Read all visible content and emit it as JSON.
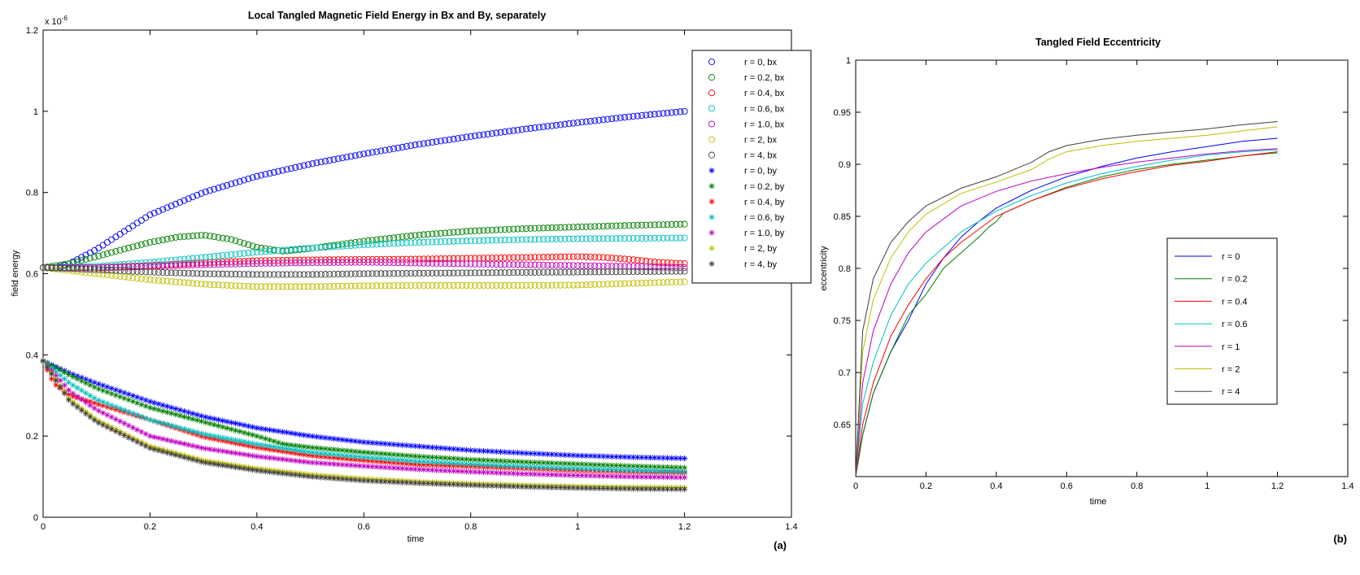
{
  "chart_data": [
    {
      "type": "scatter",
      "panel_label": "(a)",
      "title": "Local Tangled Magnetic Field Energy in Bx and By, separately",
      "xlabel": "time",
      "ylabel": "field energy",
      "y_multiplier": "x 10",
      "y_multiplier_exp": "-6",
      "xlim": [
        0,
        1.4
      ],
      "ylim": [
        0,
        1.2
      ],
      "xticks": [
        "0",
        "0.2",
        "0.4",
        "0.6",
        "0.8",
        "1",
        "1.2",
        "1.4"
      ],
      "yticks": [
        "0",
        "0.2",
        "0.4",
        "0.6",
        "0.8",
        "1",
        "1.2"
      ],
      "legend_position": "top-right",
      "series": [
        {
          "name": "r = 0, bx",
          "marker": "circle",
          "color": "#0000ff",
          "x": [
            0,
            0.02,
            0.05,
            0.1,
            0.2,
            0.3,
            0.4,
            0.5,
            0.6,
            0.7,
            0.8,
            0.9,
            1.0,
            1.1,
            1.2
          ],
          "y": [
            0.615,
            0.613,
            0.625,
            0.66,
            0.745,
            0.8,
            0.84,
            0.87,
            0.895,
            0.918,
            0.938,
            0.956,
            0.972,
            0.987,
            1.0
          ]
        },
        {
          "name": "r = 0.2, bx",
          "marker": "circle",
          "color": "#008000",
          "x": [
            0,
            0.05,
            0.1,
            0.15,
            0.2,
            0.25,
            0.3,
            0.35,
            0.4,
            0.45,
            0.5,
            0.6,
            0.7,
            0.8,
            0.9,
            1.0,
            1.1,
            1.2
          ],
          "y": [
            0.615,
            0.625,
            0.642,
            0.66,
            0.677,
            0.69,
            0.695,
            0.685,
            0.665,
            0.655,
            0.662,
            0.68,
            0.695,
            0.705,
            0.711,
            0.715,
            0.719,
            0.722
          ]
        },
        {
          "name": "r = 0.4, bx",
          "marker": "circle",
          "color": "#ff0000",
          "x": [
            0,
            0.1,
            0.2,
            0.3,
            0.4,
            0.5,
            0.6,
            0.7,
            0.8,
            0.9,
            1.0,
            1.05,
            1.1,
            1.15,
            1.2
          ],
          "y": [
            0.615,
            0.615,
            0.62,
            0.627,
            0.632,
            0.634,
            0.635,
            0.636,
            0.638,
            0.64,
            0.642,
            0.64,
            0.635,
            0.628,
            0.625
          ]
        },
        {
          "name": "r = 0.6, bx",
          "marker": "circle",
          "color": "#00bfbf",
          "x": [
            0,
            0.1,
            0.2,
            0.3,
            0.4,
            0.5,
            0.6,
            0.7,
            0.8,
            0.9,
            1.0,
            1.1,
            1.2
          ],
          "y": [
            0.615,
            0.618,
            0.628,
            0.64,
            0.653,
            0.663,
            0.671,
            0.677,
            0.681,
            0.684,
            0.686,
            0.687,
            0.688
          ]
        },
        {
          "name": "r = 1.0, bx",
          "marker": "circle",
          "color": "#bf00bf",
          "x": [
            0,
            0.1,
            0.2,
            0.3,
            0.4,
            0.5,
            0.6,
            0.7,
            0.8,
            0.9,
            1.0,
            1.1,
            1.2
          ],
          "y": [
            0.615,
            0.614,
            0.618,
            0.622,
            0.625,
            0.627,
            0.628,
            0.626,
            0.624,
            0.622,
            0.62,
            0.618,
            0.615
          ]
        },
        {
          "name": "r = 2, bx",
          "marker": "circle",
          "color": "#bfbf00",
          "x": [
            0,
            0.1,
            0.2,
            0.3,
            0.4,
            0.5,
            0.6,
            0.7,
            0.8,
            0.9,
            1.0,
            1.1,
            1.2
          ],
          "y": [
            0.615,
            0.6,
            0.585,
            0.574,
            0.568,
            0.568,
            0.57,
            0.571,
            0.571,
            0.571,
            0.572,
            0.576,
            0.58
          ]
        },
        {
          "name": "r = 4, bx",
          "marker": "circle",
          "color": "#404040",
          "x": [
            0,
            0.1,
            0.2,
            0.3,
            0.4,
            0.5,
            0.6,
            0.7,
            0.8,
            0.9,
            1.0,
            1.1,
            1.2
          ],
          "y": [
            0.615,
            0.61,
            0.604,
            0.6,
            0.598,
            0.598,
            0.6,
            0.601,
            0.602,
            0.603,
            0.604,
            0.605,
            0.606
          ]
        },
        {
          "name": "r = 0, by",
          "marker": "asterisk",
          "color": "#0000ff",
          "x": [
            0,
            0.05,
            0.1,
            0.2,
            0.3,
            0.4,
            0.5,
            0.6,
            0.7,
            0.8,
            0.9,
            1.0,
            1.1,
            1.2
          ],
          "y": [
            0.385,
            0.355,
            0.33,
            0.285,
            0.248,
            0.22,
            0.2,
            0.185,
            0.175,
            0.165,
            0.158,
            0.152,
            0.148,
            0.145
          ]
        },
        {
          "name": "r = 0.2, by",
          "marker": "asterisk",
          "color": "#008000",
          "x": [
            0,
            0.05,
            0.1,
            0.2,
            0.3,
            0.4,
            0.45,
            0.5,
            0.6,
            0.7,
            0.8,
            0.9,
            1.0,
            1.1,
            1.2
          ],
          "y": [
            0.385,
            0.35,
            0.318,
            0.27,
            0.235,
            0.2,
            0.18,
            0.172,
            0.16,
            0.15,
            0.142,
            0.136,
            0.131,
            0.126,
            0.122
          ]
        },
        {
          "name": "r = 0.4, by",
          "marker": "asterisk",
          "color": "#ff0000",
          "x": [
            0,
            0.02,
            0.05,
            0.1,
            0.2,
            0.3,
            0.4,
            0.5,
            0.6,
            0.7,
            0.8,
            0.9,
            1.0,
            1.1,
            1.2
          ],
          "y": [
            0.385,
            0.33,
            0.3,
            0.28,
            0.24,
            0.198,
            0.172,
            0.152,
            0.14,
            0.13,
            0.125,
            0.12,
            0.115,
            0.112,
            0.11
          ]
        },
        {
          "name": "r = 0.6, by",
          "marker": "asterisk",
          "color": "#00bfbf",
          "x": [
            0,
            0.05,
            0.1,
            0.2,
            0.3,
            0.4,
            0.5,
            0.6,
            0.7,
            0.8,
            0.9,
            1.0,
            1.1,
            1.2
          ],
          "y": [
            0.385,
            0.33,
            0.29,
            0.24,
            0.205,
            0.18,
            0.16,
            0.148,
            0.138,
            0.131,
            0.125,
            0.12,
            0.116,
            0.112
          ]
        },
        {
          "name": "r = 1.0, by",
          "marker": "asterisk",
          "color": "#bf00bf",
          "x": [
            0,
            0.05,
            0.1,
            0.2,
            0.3,
            0.4,
            0.5,
            0.6,
            0.7,
            0.8,
            0.9,
            1.0,
            1.1,
            1.2
          ],
          "y": [
            0.385,
            0.31,
            0.265,
            0.2,
            0.17,
            0.15,
            0.135,
            0.126,
            0.118,
            0.112,
            0.107,
            0.103,
            0.1,
            0.098
          ]
        },
        {
          "name": "r = 2, by",
          "marker": "asterisk",
          "color": "#bfbf00",
          "x": [
            0,
            0.05,
            0.1,
            0.2,
            0.3,
            0.4,
            0.5,
            0.6,
            0.7,
            0.8,
            0.9,
            1.0,
            1.1,
            1.2
          ],
          "y": [
            0.385,
            0.29,
            0.24,
            0.175,
            0.14,
            0.12,
            0.105,
            0.095,
            0.088,
            0.083,
            0.079,
            0.076,
            0.074,
            0.073
          ]
        },
        {
          "name": "r = 4, by",
          "marker": "asterisk",
          "color": "#404040",
          "x": [
            0,
            0.05,
            0.1,
            0.2,
            0.3,
            0.4,
            0.5,
            0.6,
            0.7,
            0.8,
            0.9,
            1.0,
            1.1,
            1.2
          ],
          "y": [
            0.385,
            0.285,
            0.235,
            0.17,
            0.135,
            0.115,
            0.1,
            0.09,
            0.084,
            0.079,
            0.075,
            0.072,
            0.07,
            0.069
          ]
        }
      ]
    },
    {
      "type": "line",
      "panel_label": "(b)",
      "title": "Tangled Field Eccentricity",
      "xlabel": "time",
      "ylabel": "eccentricity",
      "xlim": [
        0,
        1.4
      ],
      "ylim": [
        0.6,
        1.0
      ],
      "xticks": [
        "0",
        "0.2",
        "0.4",
        "0.6",
        "0.8",
        "1",
        "1.2",
        "1.4"
      ],
      "yticks": [
        "0.65",
        "0.7",
        "0.75",
        "0.8",
        "0.85",
        "0.9",
        "0.95",
        "1"
      ],
      "legend_position": "right",
      "series": [
        {
          "name": "r = 0",
          "color": "#0000ff",
          "x": [
            0,
            0.02,
            0.05,
            0.1,
            0.15,
            0.2,
            0.25,
            0.3,
            0.35,
            0.4,
            0.5,
            0.6,
            0.7,
            0.8,
            0.9,
            1.0,
            1.1,
            1.2
          ],
          "y": [
            0.6,
            0.64,
            0.68,
            0.72,
            0.75,
            0.785,
            0.81,
            0.83,
            0.845,
            0.858,
            0.875,
            0.888,
            0.898,
            0.906,
            0.912,
            0.917,
            0.922,
            0.925
          ]
        },
        {
          "name": "r = 0.2",
          "color": "#008000",
          "x": [
            0,
            0.02,
            0.05,
            0.1,
            0.15,
            0.2,
            0.25,
            0.3,
            0.35,
            0.38,
            0.4,
            0.42,
            0.5,
            0.6,
            0.7,
            0.8,
            0.9,
            1.0,
            1.1,
            1.2
          ],
          "y": [
            0.6,
            0.64,
            0.68,
            0.72,
            0.755,
            0.775,
            0.8,
            0.815,
            0.83,
            0.84,
            0.845,
            0.853,
            0.865,
            0.878,
            0.888,
            0.895,
            0.9,
            0.904,
            0.908,
            0.911
          ]
        },
        {
          "name": "r = 0.4",
          "color": "#ff0000",
          "x": [
            0,
            0.02,
            0.05,
            0.1,
            0.15,
            0.2,
            0.25,
            0.3,
            0.4,
            0.5,
            0.6,
            0.7,
            0.8,
            0.9,
            1.0,
            1.1,
            1.2
          ],
          "y": [
            0.6,
            0.65,
            0.69,
            0.735,
            0.765,
            0.79,
            0.81,
            0.825,
            0.85,
            0.865,
            0.877,
            0.886,
            0.893,
            0.899,
            0.903,
            0.908,
            0.912
          ]
        },
        {
          "name": "r = 0.6",
          "color": "#00bfbf",
          "x": [
            0,
            0.02,
            0.05,
            0.1,
            0.15,
            0.2,
            0.3,
            0.4,
            0.5,
            0.6,
            0.7,
            0.8,
            0.9,
            1.0,
            1.1,
            1.2
          ],
          "y": [
            0.6,
            0.67,
            0.71,
            0.755,
            0.785,
            0.805,
            0.835,
            0.855,
            0.87,
            0.882,
            0.891,
            0.898,
            0.904,
            0.909,
            0.912,
            0.914
          ]
        },
        {
          "name": "r = 1",
          "color": "#bf00bf",
          "x": [
            0,
            0.02,
            0.05,
            0.1,
            0.15,
            0.2,
            0.3,
            0.4,
            0.5,
            0.6,
            0.7,
            0.8,
            0.9,
            1.0,
            1.1,
            1.2
          ],
          "y": [
            0.6,
            0.69,
            0.74,
            0.785,
            0.815,
            0.835,
            0.86,
            0.874,
            0.884,
            0.891,
            0.897,
            0.902,
            0.906,
            0.91,
            0.913,
            0.915
          ]
        },
        {
          "name": "r = 2",
          "color": "#bfbf00",
          "x": [
            0,
            0.02,
            0.05,
            0.1,
            0.15,
            0.2,
            0.3,
            0.4,
            0.5,
            0.55,
            0.6,
            0.7,
            0.8,
            0.9,
            1.0,
            1.1,
            1.2
          ],
          "y": [
            0.6,
            0.72,
            0.77,
            0.81,
            0.835,
            0.852,
            0.872,
            0.883,
            0.895,
            0.905,
            0.912,
            0.918,
            0.922,
            0.925,
            0.928,
            0.932,
            0.936
          ]
        },
        {
          "name": "r = 4",
          "color": "#404040",
          "x": [
            0,
            0.02,
            0.05,
            0.1,
            0.15,
            0.2,
            0.3,
            0.4,
            0.5,
            0.55,
            0.6,
            0.7,
            0.8,
            0.9,
            1.0,
            1.1,
            1.2
          ],
          "y": [
            0.6,
            0.74,
            0.79,
            0.825,
            0.845,
            0.86,
            0.877,
            0.888,
            0.902,
            0.912,
            0.918,
            0.924,
            0.928,
            0.931,
            0.934,
            0.938,
            0.941
          ]
        }
      ]
    }
  ]
}
